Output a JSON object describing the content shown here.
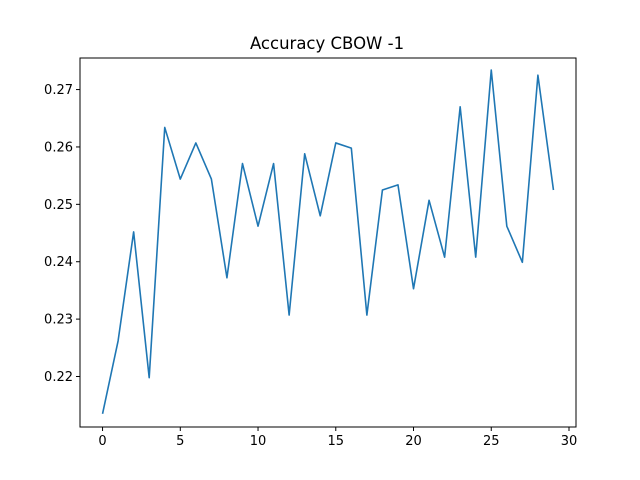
{
  "chart_data": {
    "type": "line",
    "title": "Accuracy CBOW -1",
    "xlabel": "",
    "ylabel": "",
    "xlim": [
      -1.45,
      30.45
    ],
    "ylim": [
      0.2112,
      0.2755
    ],
    "grid": false,
    "x_ticks": [
      0,
      5,
      10,
      15,
      20,
      25,
      30
    ],
    "x_tick_labels": [
      "0",
      "5",
      "10",
      "15",
      "20",
      "25",
      "30"
    ],
    "y_ticks": [
      0.22,
      0.23,
      0.24,
      0.25,
      0.26,
      0.27
    ],
    "y_tick_labels": [
      "0.22",
      "0.23",
      "0.24",
      "0.25",
      "0.26",
      "0.27"
    ],
    "colors": {
      "line": "#1f77b4"
    },
    "series": [
      {
        "x": [
          0,
          1,
          2,
          3,
          4,
          5,
          6,
          7,
          8,
          9,
          10,
          11,
          12,
          13,
          14,
          15,
          16,
          17,
          18,
          19,
          20,
          21,
          22,
          23,
          24,
          25,
          26,
          27,
          28,
          29
        ],
        "values": [
          0.2135,
          0.2262,
          0.2452,
          0.2198,
          0.2634,
          0.2544,
          0.2607,
          0.2544,
          0.2372,
          0.2571,
          0.2462,
          0.2571,
          0.2307,
          0.2588,
          0.248,
          0.2607,
          0.2598,
          0.2307,
          0.2525,
          0.2534,
          0.2353,
          0.2507,
          0.2408,
          0.267,
          0.2408,
          0.2734,
          0.2462,
          0.2399,
          0.2725,
          0.2525
        ]
      }
    ]
  }
}
